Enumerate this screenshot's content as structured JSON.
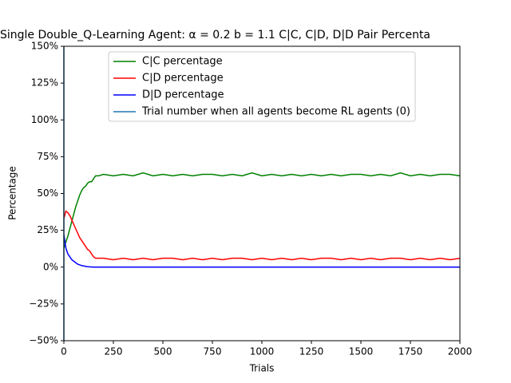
{
  "chart_data": {
    "type": "line",
    "title": "Single Double_Q-Learning Agent: α = 0.2 b = 1.1  C|C, C|D, D|D Pair Percenta",
    "x_label": "Trials",
    "y_label": "Percentage",
    "x": [
      0,
      10,
      20,
      30,
      40,
      50,
      60,
      70,
      80,
      90,
      100,
      110,
      120,
      130,
      140,
      150,
      160,
      175,
      200,
      250,
      300,
      350,
      400,
      450,
      500,
      550,
      600,
      650,
      700,
      750,
      800,
      850,
      900,
      950,
      1000,
      1050,
      1100,
      1150,
      1200,
      1250,
      1300,
      1350,
      1400,
      1450,
      1500,
      1550,
      1600,
      1650,
      1700,
      1750,
      1800,
      1850,
      1900,
      1950,
      2000
    ],
    "series": [
      {
        "name": "C|C percentage",
        "color": "#008000",
        "values": [
          13,
          17,
          21,
          26,
          31,
          36,
          41,
          45,
          49,
          52,
          54,
          55,
          57,
          58,
          58,
          60,
          62,
          62,
          63,
          62,
          63,
          62,
          64,
          62,
          63,
          62,
          63,
          62,
          63,
          63,
          62,
          63,
          62,
          64,
          62,
          63,
          62,
          63,
          62,
          63,
          62,
          63,
          62,
          63,
          63,
          62,
          63,
          62,
          64,
          62,
          63,
          62,
          63,
          63,
          62
        ]
      },
      {
        "name": "C|D percentage",
        "color": "#ff0000",
        "values": [
          33,
          38,
          37,
          35,
          32,
          29,
          26,
          23,
          20,
          18,
          16,
          14,
          12,
          11,
          9,
          7,
          6,
          6,
          6,
          5,
          6,
          5,
          6,
          5,
          6,
          6,
          5,
          6,
          5,
          6,
          5,
          6,
          6,
          5,
          6,
          5,
          6,
          5,
          6,
          5,
          6,
          6,
          5,
          6,
          5,
          6,
          5,
          6,
          6,
          5,
          6,
          5,
          6,
          5,
          6
        ]
      },
      {
        "name": "D|D percentage",
        "color": "#0000ff",
        "values": [
          22,
          13,
          9,
          7,
          5,
          4,
          3,
          2,
          1.5,
          1,
          0.8,
          0.5,
          0.3,
          0.2,
          0.1,
          0,
          0,
          0,
          0,
          0,
          0,
          0,
          0,
          0,
          0,
          0,
          0,
          0,
          0,
          0,
          0,
          0,
          0,
          0,
          0,
          0,
          0,
          0,
          0,
          0,
          0,
          0,
          0,
          0,
          0,
          0,
          0,
          0,
          0,
          0,
          0,
          0,
          0,
          0,
          0
        ]
      }
    ],
    "vline": {
      "name": "Trial number when all agents become RL agents (0)",
      "color": "#1f77b4",
      "x": 0
    },
    "xlim": [
      0,
      2000
    ],
    "xticks": [
      0,
      250,
      500,
      750,
      1000,
      1250,
      1500,
      1750,
      2000
    ],
    "ylim": [
      -50,
      150
    ],
    "yticks": [
      {
        "value": -50,
        "label": "−50%"
      },
      {
        "value": -25,
        "label": "−25%"
      },
      {
        "value": 0,
        "label": "0%"
      },
      {
        "value": 25,
        "label": "25%"
      },
      {
        "value": 50,
        "label": "50%"
      },
      {
        "value": 75,
        "label": "75%"
      },
      {
        "value": 100,
        "label": "100%"
      },
      {
        "value": 125,
        "label": "125%"
      },
      {
        "value": 150,
        "label": "150%"
      }
    ],
    "legend": "upper center"
  }
}
